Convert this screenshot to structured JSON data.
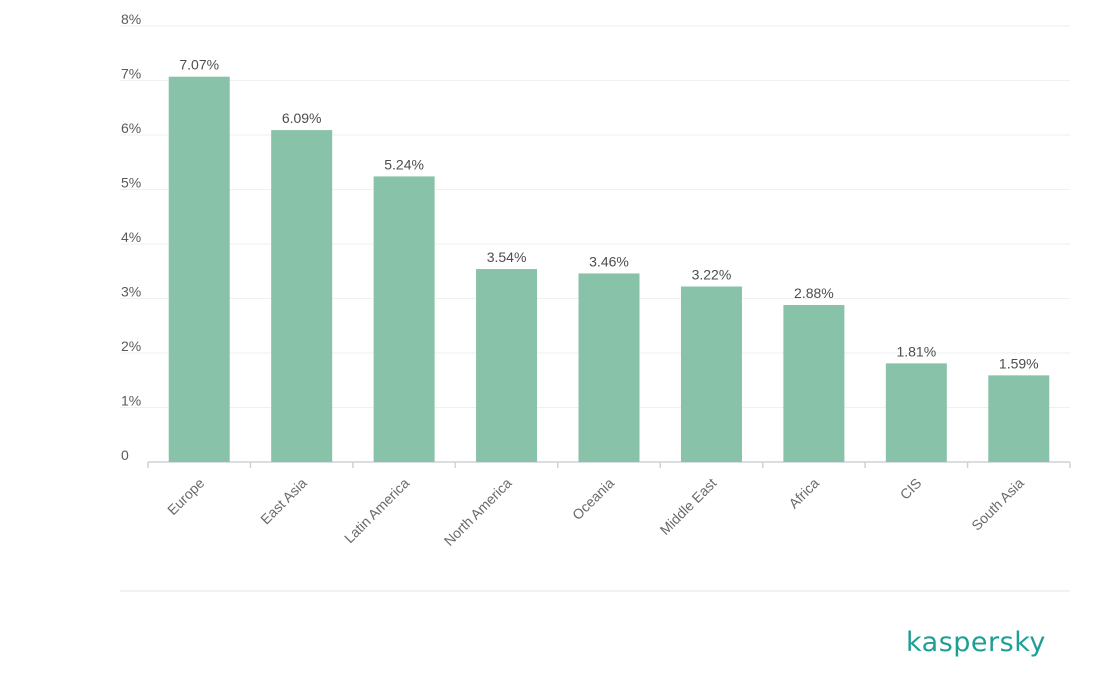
{
  "chart_data": {
    "type": "bar",
    "title": "",
    "xlabel": "",
    "ylabel": "",
    "categories": [
      "Europe",
      "East Asia",
      "Latin America",
      "North America",
      "Oceania",
      "Middle East",
      "Africa",
      "CIS",
      "South Asia"
    ],
    "values": [
      7.07,
      6.09,
      5.24,
      3.54,
      3.46,
      3.22,
      2.88,
      1.81,
      1.59
    ],
    "value_labels": [
      "7.07%",
      "6.09%",
      "5.24%",
      "3.54%",
      "3.46%",
      "3.22%",
      "2.88%",
      "1.81%",
      "1.59%"
    ],
    "ylim": [
      0,
      8
    ],
    "yticks": [
      0,
      1,
      2,
      3,
      4,
      5,
      6,
      7,
      8
    ],
    "ytick_labels": [
      "0",
      "1%",
      "2%",
      "3%",
      "4%",
      "5%",
      "6%",
      "7%",
      "8%"
    ],
    "grid": true,
    "bar_color": "#88c2a8"
  },
  "brand": {
    "logo_text": "kaspersky",
    "color": "#1e9f94"
  }
}
